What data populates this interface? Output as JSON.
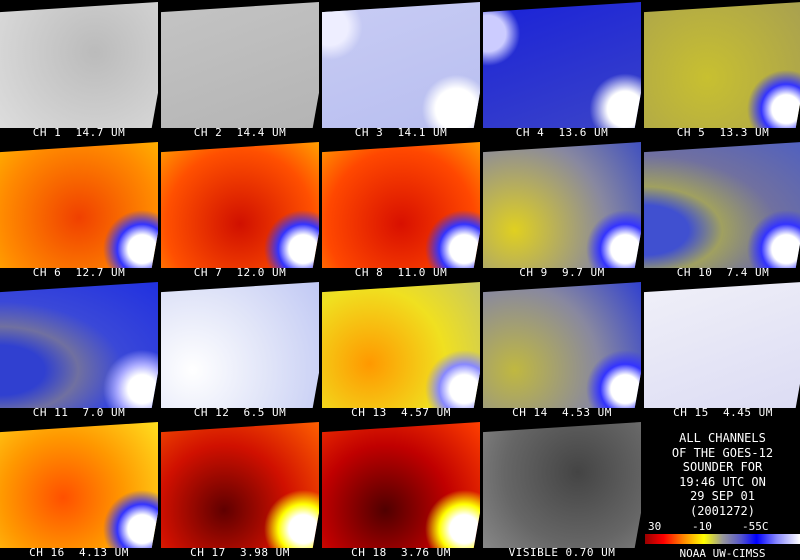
{
  "panels": [
    {
      "label": "CH 1  14.7 UM"
    },
    {
      "label": "CH 2  14.4 UM"
    },
    {
      "label": "CH 3  14.1 UM"
    },
    {
      "label": "CH 4  13.6 UM"
    },
    {
      "label": "CH 5  13.3 UM"
    },
    {
      "label": "CH 6  12.7 UM"
    },
    {
      "label": "CH 7  12.0 UM"
    },
    {
      "label": "CH 8  11.0 UM"
    },
    {
      "label": "CH 9  9.7 UM"
    },
    {
      "label": "CH 10  7.4 UM"
    },
    {
      "label": "CH 11  7.0 UM"
    },
    {
      "label": "CH 12  6.5 UM"
    },
    {
      "label": "CH 13  4.57 UM"
    },
    {
      "label": "CH 14  4.53 UM"
    },
    {
      "label": "CH 15  4.45 UM"
    },
    {
      "label": "CH 16  4.13 UM"
    },
    {
      "label": "CH 17  3.98 UM"
    },
    {
      "label": "CH 18  3.76 UM"
    },
    {
      "label": "VISIBLE 0.70 UM"
    }
  ],
  "caption": [
    "ALL CHANNELS",
    "OF THE GOES-12",
    "SOUNDER FOR",
    "19:46 UTC ON",
    "29 SEP 01",
    "(2001272)"
  ],
  "colorbar_labels": [
    "30",
    "-10",
    "-55C"
  ],
  "credit": "NOAA UW-CIMSS"
}
